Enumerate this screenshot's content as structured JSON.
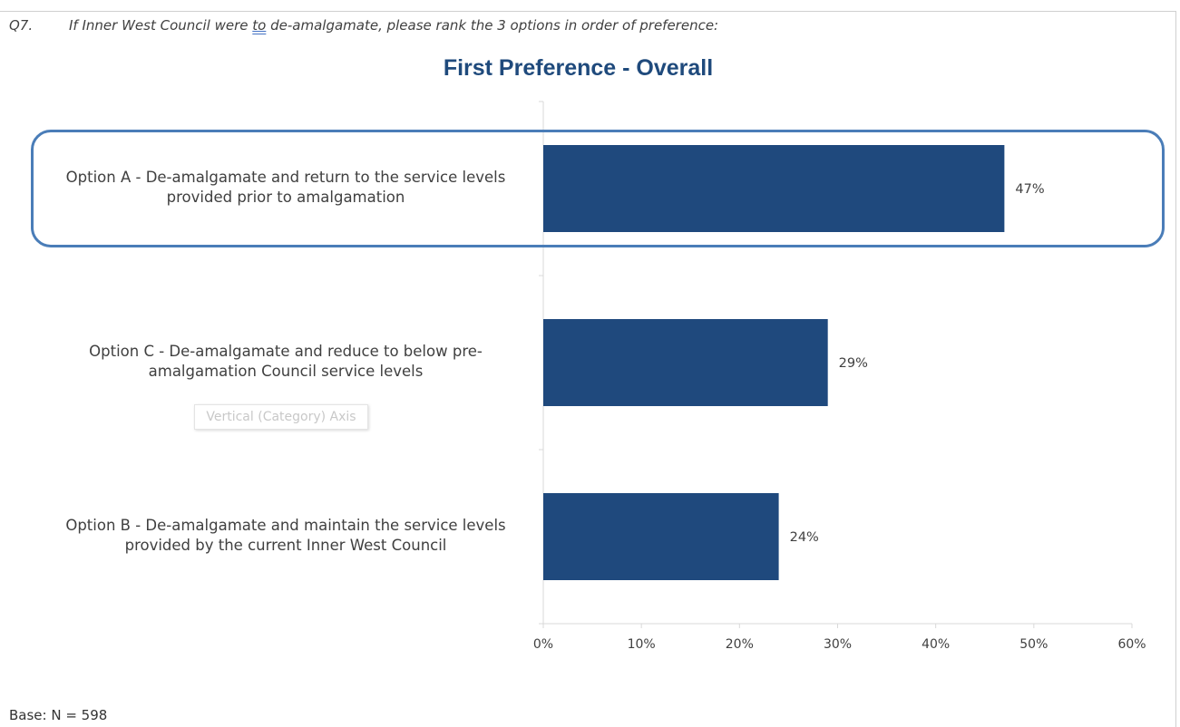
{
  "question": {
    "number": "Q7.",
    "text_before": "If Inner West Council were ",
    "text_underlined": "to",
    "text_after": " de-amalgamate, please rank the 3 options in order of preference:"
  },
  "tooltip": "Vertical (Category) Axis",
  "base_note": "Base: N = 598",
  "colors": {
    "bar": "#1f497d",
    "title": "#1f4a7c",
    "highlight": "#4a7db8"
  },
  "chart_data": {
    "type": "bar",
    "orientation": "horizontal",
    "title": "First Preference - Overall",
    "categories": [
      "Option A - De-amalgamate and return to the service levels provided prior to amalgamation",
      "Option C - De-amalgamate and reduce to below pre-amalgamation Council service levels",
      "Option B - De-amalgamate and maintain the service levels provided by the current Inner West Council"
    ],
    "values": [
      47,
      29,
      24
    ],
    "data_labels": [
      "47%",
      "29%",
      "24%"
    ],
    "xlim": [
      0,
      60
    ],
    "xticks": [
      "0%",
      "10%",
      "20%",
      "30%",
      "40%",
      "50%",
      "60%"
    ],
    "grid": false,
    "legend": "none",
    "highlighted_category": "Option A - De-amalgamate and return to the service levels provided prior to amalgamation"
  }
}
